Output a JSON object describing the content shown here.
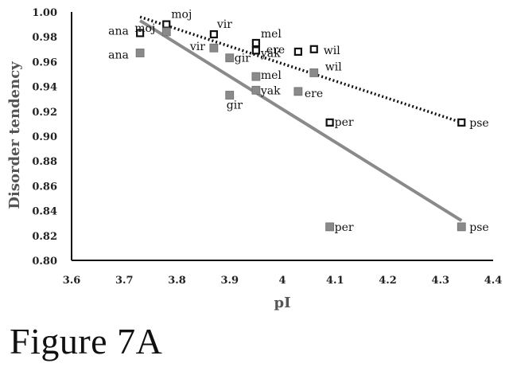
{
  "caption": "Figure 7A",
  "chart_data": {
    "type": "scatter",
    "xlabel": "pI",
    "ylabel": "Disorder tendency",
    "xlim": [
      3.6,
      4.4
    ],
    "ylim": [
      0.8,
      1.0
    ],
    "x_ticks": [
      "3.6",
      "3.7",
      "3.8",
      "3.9",
      "4",
      "4.1",
      "4.2",
      "4.3",
      "4.4"
    ],
    "y_ticks": [
      "0.80",
      "0.82",
      "0.84",
      "0.86",
      "0.88",
      "0.90",
      "0.92",
      "0.94",
      "0.96",
      "0.98",
      "1.00"
    ],
    "series": [
      {
        "marker": "open-square",
        "color": "#111111",
        "trendline": {
          "style": "dotted",
          "color": "#111111",
          "x": [
            3.73,
            4.34
          ],
          "y": [
            0.996,
            0.911
          ]
        },
        "points": [
          {
            "label": "ana",
            "x": 3.73,
            "y": 0.983
          },
          {
            "label": "moj",
            "x": 3.78,
            "y": 0.99
          },
          {
            "label": "vir",
            "x": 3.87,
            "y": 0.982
          },
          {
            "label": "mel",
            "x": 3.95,
            "y": 0.975
          },
          {
            "label": "yak",
            "x": 3.95,
            "y": 0.969
          },
          {
            "label": "ere",
            "x": 4.03,
            "y": 0.968
          },
          {
            "label": "wil",
            "x": 4.06,
            "y": 0.97
          },
          {
            "label": "per",
            "x": 4.09,
            "y": 0.911
          },
          {
            "label": "pse",
            "x": 4.34,
            "y": 0.911
          }
        ]
      },
      {
        "marker": "filled-square",
        "color": "#8a8a8a",
        "trendline": {
          "style": "solid",
          "color": "#8a8a8a",
          "x": [
            3.73,
            4.34
          ],
          "y": [
            0.993,
            0.832
          ]
        },
        "points": [
          {
            "label": "ana",
            "x": 3.73,
            "y": 0.967
          },
          {
            "label": "moj",
            "x": 3.78,
            "y": 0.984
          },
          {
            "label": "vir",
            "x": 3.87,
            "y": 0.971
          },
          {
            "label": "gir",
            "x": 3.9,
            "y": 0.963
          },
          {
            "label": "mel",
            "x": 3.95,
            "y": 0.948
          },
          {
            "label": "yak",
            "x": 3.95,
            "y": 0.937
          },
          {
            "label": "gir",
            "x": 3.9,
            "y": 0.933
          },
          {
            "label": "ere",
            "x": 4.03,
            "y": 0.936
          },
          {
            "label": "wil",
            "x": 4.06,
            "y": 0.951
          },
          {
            "label": "per",
            "x": 4.09,
            "y": 0.827
          },
          {
            "label": "pse",
            "x": 4.34,
            "y": 0.827
          }
        ]
      }
    ],
    "grid": false,
    "legend": "none"
  }
}
